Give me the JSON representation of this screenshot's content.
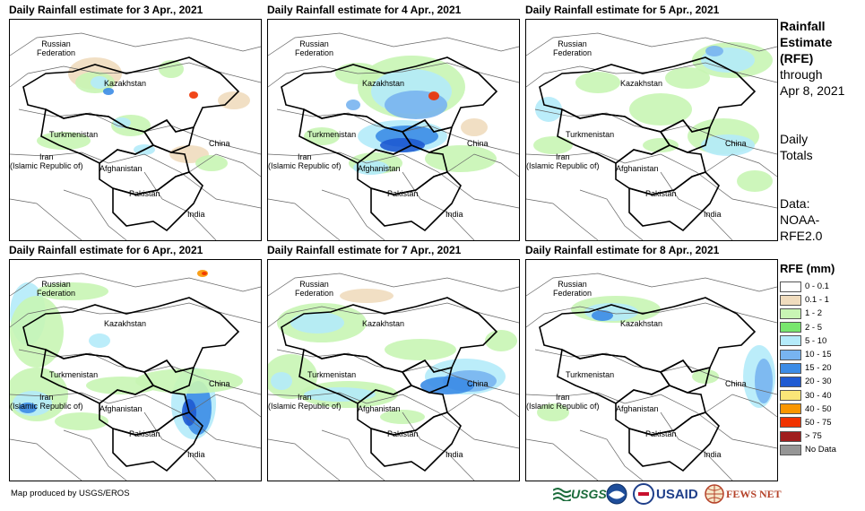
{
  "panels": [
    {
      "title": "Daily Rainfall estimate for 3 Apr., 2021"
    },
    {
      "title": "Daily Rainfall estimate for 4 Apr., 2021"
    },
    {
      "title": "Daily Rainfall estimate for 5 Apr., 2021"
    },
    {
      "title": "Daily Rainfall estimate for 6 Apr., 2021"
    },
    {
      "title": "Daily Rainfall estimate for 7 Apr., 2021"
    },
    {
      "title": "Daily Rainfall estimate for 8 Apr., 2021"
    }
  ],
  "countries": {
    "russia_1": "Russian",
    "russia_2": "Federation",
    "kazakhstan": "Kazakhstan",
    "turkmenistan": "Turkmenistan",
    "iran_1": "Iran",
    "iran_2": "(Islamic Republic of)",
    "afghanistan": "Afghanistan",
    "pakistan": "Pakistan",
    "china": "China",
    "india": "India"
  },
  "sidebar": {
    "title_1": "Rainfall",
    "title_2": "Estimate",
    "title_3": "(RFE)",
    "through": "through",
    "date": "Apr 8, 2021",
    "daily": "Daily",
    "totals": "Totals",
    "data_label": "Data:",
    "data_src_1": "NOAA-",
    "data_src_2": "RFE2.0"
  },
  "legend": {
    "title": "RFE (mm)",
    "items": [
      {
        "label": "0 - 0.1",
        "color": "#ffffff"
      },
      {
        "label": "0.1 - 1",
        "color": "#f0dcbe"
      },
      {
        "label": "1 - 2",
        "color": "#c8f5b4"
      },
      {
        "label": "2 - 5",
        "color": "#78e66e"
      },
      {
        "label": "5 - 10",
        "color": "#b4ebfa"
      },
      {
        "label": "10 - 15",
        "color": "#78b4f0"
      },
      {
        "label": "15 - 20",
        "color": "#3c8ce6"
      },
      {
        "label": "20 - 30",
        "color": "#1e5ad2"
      },
      {
        "label": "30 - 40",
        "color": "#fae678"
      },
      {
        "label": "40 - 50",
        "color": "#fa9600"
      },
      {
        "label": "50 - 75",
        "color": "#f03200"
      },
      {
        "label": "> 75",
        "color": "#a01e1e"
      },
      {
        "label": "No Data",
        "color": "#969696"
      }
    ]
  },
  "footer": {
    "credit": "Map produced by USGS/EROS"
  },
  "logos": {
    "usgs": "USGS",
    "usaid": "USAID",
    "fewsnet": "FEWS NET"
  }
}
